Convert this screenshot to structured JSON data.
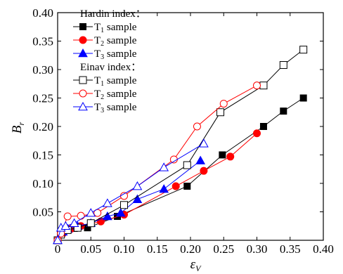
{
  "chart_data": {
    "type": "scatter",
    "xlabel_symbol": "ε",
    "xlabel_sub": "V",
    "ylabel_symbol": "B",
    "ylabel_sub": "r",
    "xlim": [
      0,
      0.4
    ],
    "ylim": [
      0,
      0.4
    ],
    "x_ticks": [
      "0",
      "0.05",
      "0.10",
      "0.15",
      "0.20",
      "0.25",
      "0.30",
      "0.35",
      "0.40"
    ],
    "y_ticks": [
      "0.05",
      "0.10",
      "0.15",
      "0.20",
      "0.25",
      "0.30",
      "0.35",
      "0.40"
    ],
    "legend_placement": "top-left",
    "legend_groups": [
      {
        "title": "Hardin index：",
        "items": [
          {
            "prefix": "T",
            "sub": "1",
            "text": " sample",
            "series": 0
          },
          {
            "prefix": "T",
            "sub": "2",
            "text": " sample",
            "series": 1
          },
          {
            "prefix": "T",
            "sub": "3",
            "text": " sample",
            "series": 2
          }
        ]
      },
      {
        "title": "Einav index：",
        "items": [
          {
            "prefix": "T",
            "sub": "1",
            "text": " sample",
            "series": 3
          },
          {
            "prefix": "T",
            "sub": "2",
            "text": " sample",
            "series": 4
          },
          {
            "prefix": "T",
            "sub": "3",
            "text": " sample",
            "series": 5
          }
        ]
      }
    ],
    "series": [
      {
        "group": "Hardin index",
        "sample": "T1",
        "marker": "square",
        "filled": true,
        "color": "#000000",
        "points": [
          [
            0,
            0
          ],
          [
            0.005,
            0.01
          ],
          [
            0.012,
            0.018
          ],
          [
            0.025,
            0.021
          ],
          [
            0.045,
            0.022
          ],
          [
            0.09,
            0.042
          ],
          [
            0.195,
            0.095
          ],
          [
            0.248,
            0.15
          ],
          [
            0.31,
            0.2
          ],
          [
            0.34,
            0.227
          ],
          [
            0.37,
            0.25
          ]
        ]
      },
      {
        "group": "Hardin index",
        "sample": "T2",
        "marker": "circle",
        "filled": true,
        "color": "#ff0000",
        "points": [
          [
            0,
            0
          ],
          [
            0.008,
            0.012
          ],
          [
            0.02,
            0.02
          ],
          [
            0.035,
            0.025
          ],
          [
            0.065,
            0.033
          ],
          [
            0.1,
            0.045
          ],
          [
            0.178,
            0.095
          ],
          [
            0.22,
            0.122
          ],
          [
            0.26,
            0.147
          ],
          [
            0.3,
            0.188
          ]
        ]
      },
      {
        "group": "Hardin index",
        "sample": "T3",
        "marker": "triangle",
        "filled": true,
        "color": "#0000ff",
        "points": [
          [
            0,
            0
          ],
          [
            0.008,
            0.015
          ],
          [
            0.015,
            0.02
          ],
          [
            0.03,
            0.025
          ],
          [
            0.05,
            0.03
          ],
          [
            0.075,
            0.042
          ],
          [
            0.095,
            0.048
          ],
          [
            0.12,
            0.072
          ],
          [
            0.16,
            0.09
          ],
          [
            0.215,
            0.14
          ]
        ]
      },
      {
        "group": "Einav index",
        "sample": "T1",
        "marker": "square",
        "filled": false,
        "color": "#000000",
        "points": [
          [
            0,
            0
          ],
          [
            0.005,
            0.01
          ],
          [
            0.015,
            0.018
          ],
          [
            0.03,
            0.022
          ],
          [
            0.05,
            0.03
          ],
          [
            0.1,
            0.062
          ],
          [
            0.195,
            0.132
          ],
          [
            0.245,
            0.225
          ],
          [
            0.31,
            0.272
          ],
          [
            0.34,
            0.308
          ],
          [
            0.37,
            0.335
          ]
        ]
      },
      {
        "group": "Einav index",
        "sample": "T2",
        "marker": "circle",
        "filled": false,
        "color": "#ff0000",
        "points": [
          [
            0,
            0
          ],
          [
            0.005,
            0.012
          ],
          [
            0.015,
            0.042
          ],
          [
            0.035,
            0.043
          ],
          [
            0.06,
            0.048
          ],
          [
            0.1,
            0.078
          ],
          [
            0.175,
            0.142
          ],
          [
            0.21,
            0.2
          ],
          [
            0.25,
            0.24
          ],
          [
            0.3,
            0.272
          ]
        ]
      },
      {
        "group": "Einav index",
        "sample": "T3",
        "marker": "triangle",
        "filled": false,
        "color": "#0000ff",
        "points": [
          [
            0,
            0
          ],
          [
            0.005,
            0.022
          ],
          [
            0.012,
            0.025
          ],
          [
            0.025,
            0.03
          ],
          [
            0.05,
            0.048
          ],
          [
            0.075,
            0.065
          ],
          [
            0.12,
            0.095
          ],
          [
            0.16,
            0.128
          ],
          [
            0.22,
            0.17
          ]
        ]
      }
    ]
  }
}
